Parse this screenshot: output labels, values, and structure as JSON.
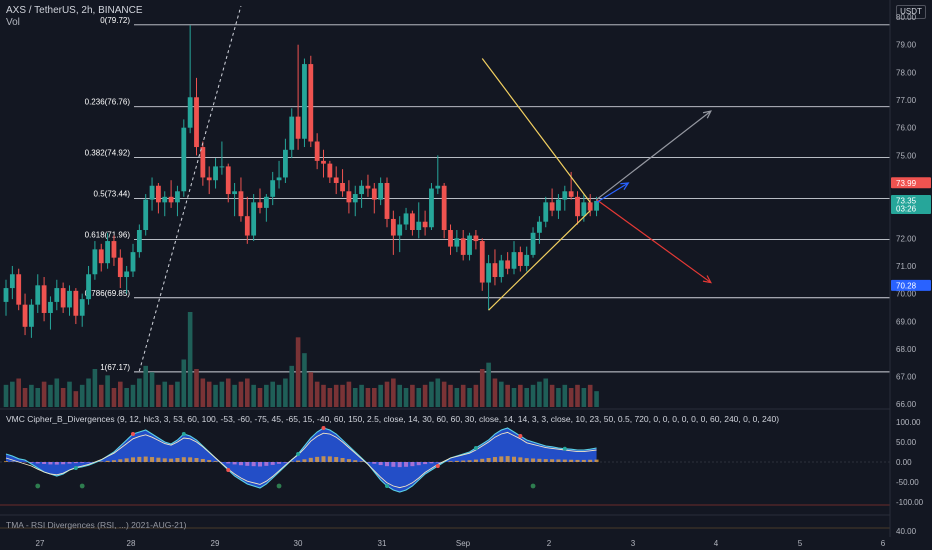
{
  "header": {
    "symbol": "AXS / TetherUS, 2h, BINANCE",
    "volume_label": "Vol",
    "currency": "USDT",
    "indicator1": "VMC Cipher_B_Divergences (9, 12, hlc3, 3, 53, 60, 100, -53, -60, -75, 45, -65, 15, -40, 60, 150, 2.5, close, 14, 30, 60, 60, 30, close, 14, 14, 3, 3, close, 10, 23, 50, 0.5, 720, 0, 0, 0, 0, 0, 0, 60, 240, 0, 0, 240)",
    "indicator2": "TMA - RSI Divergences (RSI, ...) 2021-AUG-21)"
  },
  "colors": {
    "background": "#131722",
    "up": "#26a69a",
    "down": "#ef5350",
    "fib_line": "#d1d4dc",
    "triangle": "#f2d060",
    "arrow_up": "#9598a1",
    "arrow_down": "#e53935",
    "arrow_blue": "#2962ff"
  },
  "chart_data": [
    {
      "type": "candlestick",
      "title": "AXS / TetherUS, 2h, BINANCE",
      "y_axis": {
        "ticks": [
          66.0,
          67.0,
          68.0,
          69.0,
          70.0,
          71.0,
          72.0,
          73.0,
          74.0,
          75.0,
          76.0,
          77.0,
          78.0,
          79.0,
          80.0
        ],
        "range": [
          65.9,
          80.4
        ]
      },
      "x_axis": {
        "ticks": [
          "27",
          "28",
          "29",
          "30",
          "31",
          "Sep",
          "2",
          "3",
          "4",
          "5",
          "6"
        ]
      },
      "price_tags": [
        {
          "value": "73.99",
          "color": "#ef5350"
        },
        {
          "value": "73.35",
          "sub": "03:26",
          "color": "#26a69a"
        },
        {
          "value": "70.28",
          "color": "#2962ff"
        }
      ],
      "fib_levels": [
        {
          "label": "0(79.72)",
          "value": 79.72
        },
        {
          "label": "0.236(76.76)",
          "value": 76.76
        },
        {
          "label": "0.382(74.92)",
          "value": 74.92
        },
        {
          "label": "0.5(73.44)",
          "value": 73.44
        },
        {
          "label": "0.618(71.96)",
          "value": 71.96
        },
        {
          "label": "0.786(69.85)",
          "value": 69.85
        },
        {
          "label": "1(67.17)",
          "value": 67.17
        }
      ],
      "candles": [
        [
          69.7,
          70.5,
          69.2,
          70.2
        ],
        [
          70.2,
          71.0,
          69.8,
          70.7
        ],
        [
          70.7,
          70.9,
          69.4,
          69.6
        ],
        [
          69.6,
          70.0,
          68.5,
          68.8
        ],
        [
          68.8,
          69.8,
          68.4,
          69.6
        ],
        [
          69.6,
          70.7,
          69.3,
          70.3
        ],
        [
          70.3,
          70.6,
          69.0,
          69.3
        ],
        [
          69.3,
          69.9,
          68.7,
          69.7
        ],
        [
          69.7,
          70.5,
          69.4,
          70.2
        ],
        [
          70.2,
          70.4,
          69.3,
          69.5
        ],
        [
          69.5,
          70.3,
          69.2,
          70.1
        ],
        [
          70.1,
          70.2,
          68.9,
          69.2
        ],
        [
          69.2,
          70.0,
          68.8,
          69.8
        ],
        [
          69.8,
          71.0,
          69.6,
          70.7
        ],
        [
          70.7,
          71.9,
          70.5,
          71.6
        ],
        [
          71.6,
          71.8,
          70.8,
          71.1
        ],
        [
          71.1,
          72.2,
          70.9,
          71.9
        ],
        [
          71.9,
          72.1,
          71.0,
          71.3
        ],
        [
          71.3,
          71.6,
          70.2,
          70.6
        ],
        [
          70.6,
          71.0,
          70.0,
          70.8
        ],
        [
          70.8,
          71.8,
          70.6,
          71.5
        ],
        [
          71.5,
          72.5,
          71.3,
          72.3
        ],
        [
          72.3,
          73.6,
          72.1,
          73.4
        ],
        [
          73.4,
          74.2,
          73.0,
          73.9
        ],
        [
          73.9,
          74.0,
          72.9,
          73.3
        ],
        [
          73.3,
          73.7,
          72.8,
          73.5
        ],
        [
          73.5,
          74.1,
          73.1,
          73.3
        ],
        [
          73.3,
          73.9,
          72.8,
          73.7
        ],
        [
          73.7,
          76.3,
          73.5,
          76.0
        ],
        [
          76.0,
          79.7,
          75.8,
          77.1
        ],
        [
          77.1,
          77.8,
          75.0,
          75.3
        ],
        [
          75.3,
          75.5,
          73.9,
          74.2
        ],
        [
          74.2,
          74.6,
          73.6,
          74.1
        ],
        [
          74.1,
          74.9,
          73.8,
          74.6
        ],
        [
          74.6,
          75.5,
          74.3,
          74.6
        ],
        [
          74.6,
          74.7,
          73.3,
          73.6
        ],
        [
          73.6,
          74.0,
          72.8,
          73.7
        ],
        [
          73.7,
          74.2,
          72.6,
          72.8
        ],
        [
          72.8,
          73.5,
          71.8,
          72.1
        ],
        [
          72.1,
          73.6,
          71.9,
          73.3
        ],
        [
          73.3,
          73.8,
          72.9,
          73.1
        ],
        [
          73.1,
          73.6,
          72.6,
          73.5
        ],
        [
          73.5,
          74.4,
          73.2,
          74.1
        ],
        [
          74.1,
          74.8,
          73.8,
          74.2
        ],
        [
          74.2,
          75.6,
          74.0,
          75.2
        ],
        [
          75.2,
          76.7,
          74.9,
          76.4
        ],
        [
          76.4,
          79.0,
          75.2,
          75.6
        ],
        [
          75.6,
          78.5,
          75.3,
          78.3
        ],
        [
          78.3,
          78.6,
          75.3,
          75.5
        ],
        [
          75.5,
          75.8,
          74.5,
          74.8
        ],
        [
          74.8,
          75.2,
          74.2,
          74.7
        ],
        [
          74.7,
          74.8,
          74.0,
          74.2
        ],
        [
          74.2,
          74.6,
          73.6,
          74.0
        ],
        [
          74.0,
          74.5,
          73.5,
          73.7
        ],
        [
          73.7,
          74.1,
          72.9,
          73.3
        ],
        [
          73.3,
          73.9,
          72.8,
          73.6
        ],
        [
          73.6,
          74.1,
          73.1,
          73.9
        ],
        [
          73.9,
          74.3,
          73.5,
          73.8
        ],
        [
          73.8,
          74.0,
          72.9,
          73.4
        ],
        [
          73.4,
          74.2,
          73.2,
          74.0
        ],
        [
          74.0,
          74.2,
          72.4,
          72.7
        ],
        [
          72.7,
          73.0,
          71.4,
          72.1
        ],
        [
          72.1,
          72.8,
          71.5,
          72.5
        ],
        [
          72.5,
          73.1,
          72.3,
          72.9
        ],
        [
          72.9,
          73.0,
          72.1,
          72.3
        ],
        [
          72.3,
          73.3,
          72.0,
          72.6
        ],
        [
          72.6,
          73.0,
          72.1,
          72.4
        ],
        [
          72.4,
          74.0,
          72.3,
          73.8
        ],
        [
          73.8,
          75.0,
          73.6,
          73.9
        ],
        [
          73.9,
          74.0,
          72.0,
          72.3
        ],
        [
          72.3,
          72.5,
          71.4,
          71.7
        ],
        [
          71.7,
          72.3,
          71.5,
          72.0
        ],
        [
          72.0,
          72.3,
          71.2,
          71.4
        ],
        [
          71.4,
          72.2,
          71.2,
          72.1
        ],
        [
          72.1,
          72.3,
          71.6,
          71.9
        ],
        [
          71.9,
          72.0,
          70.1,
          70.4
        ],
        [
          70.4,
          71.4,
          69.4,
          71.1
        ],
        [
          71.1,
          71.6,
          70.3,
          70.6
        ],
        [
          70.6,
          71.4,
          70.4,
          71.2
        ],
        [
          71.2,
          71.5,
          70.7,
          70.9
        ],
        [
          70.9,
          71.9,
          70.7,
          71.5
        ],
        [
          71.5,
          71.7,
          70.8,
          71.0
        ],
        [
          71.0,
          71.7,
          70.8,
          71.4
        ],
        [
          71.4,
          72.4,
          71.3,
          72.2
        ],
        [
          72.2,
          72.8,
          71.8,
          72.6
        ],
        [
          72.6,
          73.5,
          72.4,
          73.3
        ],
        [
          73.3,
          73.8,
          72.8,
          73.0
        ],
        [
          73.0,
          73.6,
          72.7,
          73.4
        ],
        [
          73.4,
          73.9,
          73.0,
          73.7
        ],
        [
          73.7,
          74.4,
          73.4,
          73.5
        ],
        [
          73.5,
          73.7,
          72.5,
          72.8
        ],
        [
          72.8,
          73.6,
          72.6,
          73.3
        ],
        [
          73.3,
          73.6,
          72.8,
          73.0
        ],
        [
          73.0,
          73.5,
          72.8,
          73.35
        ]
      ],
      "volume": [
        7,
        8,
        9,
        6,
        7,
        6,
        8,
        7,
        9,
        6,
        8,
        5,
        7,
        9,
        12,
        7,
        10,
        6,
        8,
        6,
        7,
        9,
        13,
        11,
        7,
        8,
        7,
        8,
        15,
        30,
        12,
        9,
        8,
        7,
        8,
        9,
        7,
        8,
        9,
        7,
        6,
        7,
        8,
        7,
        9,
        13,
        22,
        17,
        11,
        8,
        7,
        6,
        7,
        7,
        8,
        6,
        7,
        6,
        6,
        7,
        8,
        9,
        7,
        6,
        7,
        6,
        7,
        8,
        9,
        8,
        7,
        6,
        7,
        6,
        7,
        12,
        14,
        9,
        8,
        7,
        6,
        7,
        6,
        7,
        8,
        9,
        7,
        6,
        7,
        6,
        7,
        6,
        7,
        5
      ],
      "annotations": [
        {
          "type": "triangle_upper",
          "from": [
            75,
            78.5
          ],
          "to": [
            92,
            73.3
          ]
        },
        {
          "type": "triangle_lower",
          "from": [
            76,
            69.4
          ],
          "to": [
            92,
            73.0
          ]
        },
        {
          "type": "arrow",
          "direction": "up",
          "from": [
            93,
            73.4
          ],
          "to": [
            111,
            76.6
          ]
        },
        {
          "type": "arrow",
          "direction": "down",
          "from": [
            93,
            73.4
          ],
          "to": [
            111,
            70.4
          ]
        },
        {
          "type": "arrow",
          "direction": "up",
          "from": [
            93,
            73.3
          ],
          "to": [
            98,
            74.0
          ]
        },
        {
          "type": "dashed_line",
          "from": [
            21,
            67.2
          ],
          "to": [
            37,
            80.4
          ]
        }
      ]
    },
    {
      "type": "area",
      "title": "VMC Cipher_B_Divergences",
      "y_axis": {
        "ticks": [
          "100.00",
          "50.00",
          "0.00",
          "-50.00",
          "-100.00"
        ]
      },
      "wave1": [
        20,
        15,
        8,
        5,
        -5,
        -15,
        -25,
        -30,
        -35,
        -30,
        -20,
        -15,
        -12,
        -8,
        -2,
        5,
        15,
        25,
        40,
        55,
        70,
        75,
        80,
        70,
        60,
        50,
        45,
        55,
        70,
        65,
        55,
        40,
        25,
        10,
        -5,
        -20,
        -35,
        -45,
        -55,
        -60,
        -65,
        -55,
        -40,
        -25,
        -10,
        5,
        20,
        40,
        60,
        75,
        85,
        80,
        70,
        55,
        40,
        25,
        10,
        -5,
        -25,
        -45,
        -60,
        -70,
        -75,
        -70,
        -60,
        -45,
        -30,
        -20,
        -10,
        0,
        10,
        15,
        20,
        25,
        35,
        45,
        55,
        70,
        80,
        85,
        75,
        65,
        55,
        50,
        45,
        40,
        38,
        35,
        33,
        32,
        30,
        30,
        32,
        35
      ],
      "wave2": [
        10,
        5,
        0,
        -5,
        -10,
        -18,
        -25,
        -30,
        -32,
        -28,
        -20,
        -14,
        -10,
        -6,
        0,
        6,
        14,
        22,
        34,
        46,
        58,
        64,
        68,
        62,
        54,
        46,
        42,
        50,
        60,
        58,
        50,
        38,
        24,
        10,
        -4,
        -18,
        -30,
        -40,
        -48,
        -52,
        -56,
        -48,
        -36,
        -22,
        -8,
        6,
        18,
        34,
        52,
        64,
        72,
        70,
        62,
        50,
        36,
        22,
        8,
        -6,
        -22,
        -38,
        -52,
        -60,
        -64,
        -60,
        -52,
        -40,
        -26,
        -16,
        -6,
        2,
        10,
        14,
        18,
        22,
        30,
        40,
        50,
        62,
        70,
        74,
        66,
        58,
        48,
        44,
        40,
        36,
        34,
        32,
        30,
        28,
        26,
        26,
        28,
        30
      ]
    },
    {
      "type": "line",
      "title": "TMA - RSI Divergences",
      "y_axis": {
        "ticks": [
          "40.00"
        ]
      }
    }
  ]
}
